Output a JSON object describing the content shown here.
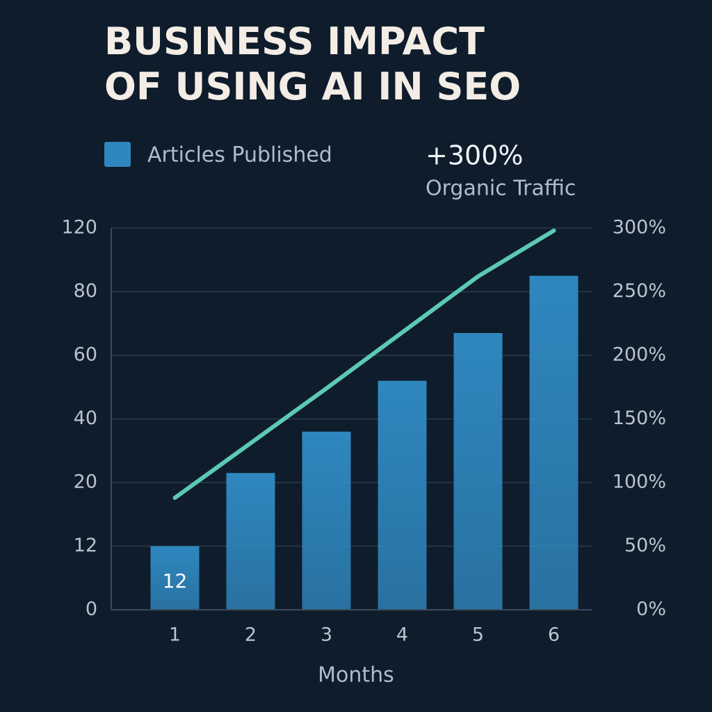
{
  "chart_data": {
    "type": "bar",
    "title": [
      "BUSINESS IMPACT",
      "OF USING AI IN SEO"
    ],
    "annotation": "+300%",
    "categories": [
      "1",
      "2",
      "3",
      "4",
      "5",
      "6"
    ],
    "xlabel": "Months",
    "series": [
      {
        "name": "Articles Published",
        "type": "bar",
        "color": "#2f87bf",
        "values": [
          12,
          23,
          36,
          52,
          67,
          90
        ]
      },
      {
        "name": "Organic Traffic",
        "type": "line",
        "axis": "y2",
        "color": "#5ccab2",
        "values": [
          88,
          131,
          174,
          218,
          262,
          298
        ]
      }
    ],
    "ylim": [
      0,
      120
    ],
    "yticks": [
      0,
      12,
      20,
      40,
      60,
      80,
      120
    ],
    "y2lim": [
      0,
      300
    ],
    "y2ticks": [
      {
        "value": 0,
        "label": "0%"
      },
      {
        "value": 50,
        "label": "50%"
      },
      {
        "value": 100,
        "label": "100%"
      },
      {
        "value": 150,
        "label": "150%"
      },
      {
        "value": 200,
        "label": "200%"
      },
      {
        "value": 250,
        "label": "250%"
      },
      {
        "value": 300,
        "label": "300%"
      }
    ],
    "grid": true
  }
}
